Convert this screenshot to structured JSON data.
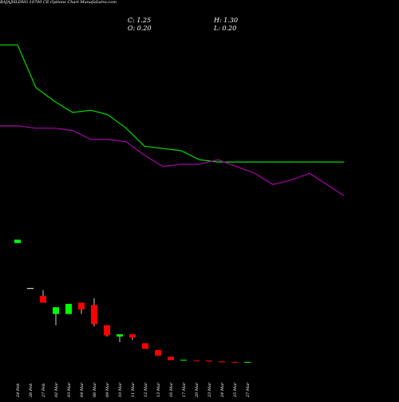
{
  "header": {
    "title": "BAJAJHLDNG 10700 CE Options  Chart MunafaSutra.com",
    "close_label": "C: 1.25",
    "high_label": "H: 1.30",
    "open_label": "O: 0.20",
    "low_label": "L: 0.20"
  },
  "colors": {
    "background": "#000000",
    "up": "#00ff00",
    "down": "#ff0000",
    "line_green": "#00dd00",
    "line_purple": "#aa00aa",
    "text": "#ffffff"
  },
  "chart_data": {
    "type": "candlestick",
    "categories": [
      "24 Feb",
      "26 Feb",
      "27 Feb",
      "02 Mar",
      "03 Mar",
      "04 Mar",
      "06 Mar",
      "09 Mar",
      "10 Mar",
      "11 Mar",
      "12 Mar",
      "13 Mar",
      "16 Mar",
      "17 Mar",
      "20 Mar",
      "23 Mar",
      "24 Mar",
      "25 Mar",
      "27 Mar"
    ],
    "candles": [
      {
        "open": 43.0,
        "high": 44.5,
        "low": 43.0,
        "close": 44.5
      },
      {
        "open": 23.0,
        "high": 23.0,
        "low": 23.0,
        "close": 23.0
      },
      {
        "open": 19.5,
        "high": 22.0,
        "low": 16.5,
        "close": 16.5
      },
      {
        "open": 11.5,
        "high": 14.5,
        "low": 6.5,
        "close": 14.5
      },
      {
        "open": 11.5,
        "high": 16.0,
        "low": 11.5,
        "close": 16.0
      },
      {
        "open": 16.5,
        "high": 16.5,
        "low": 11.5,
        "close": 13.5
      },
      {
        "open": 15.5,
        "high": 18.5,
        "low": 6.0,
        "close": 7.0
      },
      {
        "open": 6.5,
        "high": 6.5,
        "low": 1.5,
        "close": 2.0
      },
      {
        "open": 1.5,
        "high": 2.5,
        "low": -1.0,
        "close": 2.5
      },
      {
        "open": 2.5,
        "high": 2.5,
        "low": 0.0,
        "close": 1.0
      },
      {
        "open": -1.5,
        "high": -1.5,
        "low": -4.0,
        "close": -4.0
      },
      {
        "open": -4.5,
        "high": -4.5,
        "low": -7.0,
        "close": -7.0
      },
      {
        "open": -7.5,
        "high": -7.5,
        "low": -9.0,
        "close": -9.0
      },
      {
        "open": -9.0,
        "high": -8.8,
        "low": -9.0,
        "close": -8.8
      },
      {
        "open": -9.0,
        "high": -9.0,
        "low": -9.2,
        "close": -9.2
      },
      {
        "open": -9.2,
        "high": -9.2,
        "low": -9.6,
        "close": -9.6
      },
      {
        "open": -9.6,
        "high": -9.6,
        "low": -9.8,
        "close": -9.8
      },
      {
        "open": -9.8,
        "high": -9.8,
        "low": -10.0,
        "close": -10.0
      },
      {
        "open": -10.0,
        "high": -9.8,
        "low": -10.0,
        "close": -9.8
      }
    ],
    "series": [
      {
        "values": [
          131,
          131,
          112,
          106,
          101,
          102,
          100,
          94,
          86,
          85,
          84,
          80,
          79,
          79,
          79,
          79,
          79,
          79,
          79
        ]
      },
      {
        "values": [
          95,
          95,
          94,
          94,
          93,
          89,
          89,
          88,
          82,
          77,
          78,
          78,
          80,
          77,
          74,
          69,
          71,
          74,
          64
        ]
      }
    ],
    "ylim": [
      -12,
      135
    ],
    "grid": false
  }
}
